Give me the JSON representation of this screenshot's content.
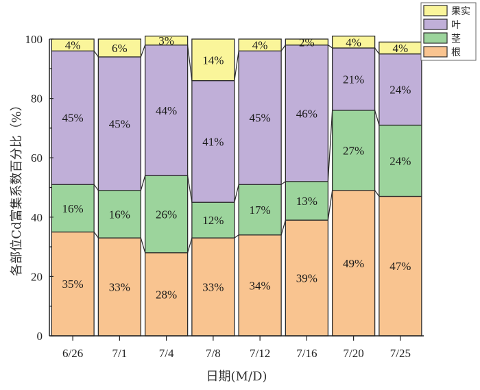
{
  "chart_data": {
    "type": "bar",
    "stacked": true,
    "title": "",
    "xlabel": "日期(M/D)",
    "ylabel": "各部位Cd富集系数百分比（%）",
    "ylim": [
      0,
      100
    ],
    "yticks": [
      0,
      20,
      40,
      60,
      80,
      100
    ],
    "categories": [
      "6/26",
      "7/1",
      "7/4",
      "7/8",
      "7/12",
      "7/16",
      "7/20",
      "7/25"
    ],
    "series": [
      {
        "name": "根",
        "color": "#F9C490",
        "values": [
          35,
          33,
          28,
          33,
          34,
          39,
          49,
          47
        ]
      },
      {
        "name": "茎",
        "color": "#9CD49C",
        "values": [
          16,
          16,
          26,
          12,
          17,
          13,
          27,
          24
        ]
      },
      {
        "name": "叶",
        "color": "#C0AFD8",
        "values": [
          45,
          45,
          44,
          41,
          45,
          46,
          21,
          24
        ]
      },
      {
        "name": "果实",
        "color": "#FAF59A",
        "values": [
          4,
          6,
          3,
          14,
          4,
          2,
          4,
          4
        ]
      }
    ],
    "legend": {
      "position": "top-right",
      "order": [
        "果实",
        "叶",
        "茎",
        "根"
      ]
    },
    "connector_lines": true,
    "grid": false
  }
}
